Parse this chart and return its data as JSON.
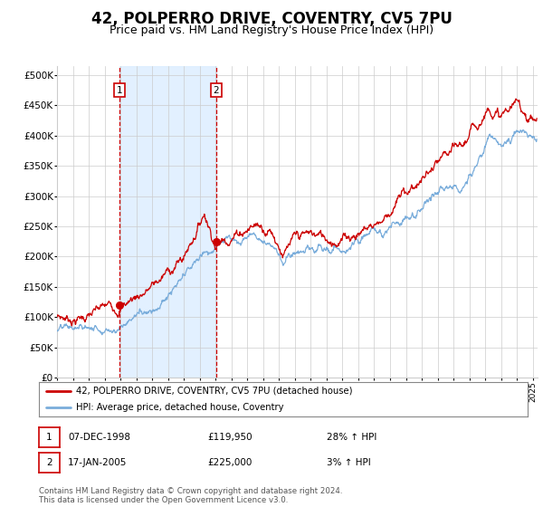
{
  "title": "42, POLPERRO DRIVE, COVENTRY, CV5 7PU",
  "subtitle": "Price paid vs. HM Land Registry's House Price Index (HPI)",
  "ytick_values": [
    0,
    50000,
    100000,
    150000,
    200000,
    250000,
    300000,
    350000,
    400000,
    450000,
    500000
  ],
  "ylim": [
    0,
    515000
  ],
  "xlim_start": 1995.0,
  "xlim_end": 2025.3,
  "xtick_years": [
    1995,
    1996,
    1997,
    1998,
    1999,
    2000,
    2001,
    2002,
    2003,
    2004,
    2005,
    2006,
    2007,
    2008,
    2009,
    2010,
    2011,
    2012,
    2013,
    2014,
    2015,
    2016,
    2017,
    2018,
    2019,
    2020,
    2021,
    2022,
    2023,
    2024,
    2025
  ],
  "sale1_x": 1998.93,
  "sale1_y": 119950,
  "sale2_x": 2005.04,
  "sale2_y": 225000,
  "sale1_label": "07-DEC-1998",
  "sale1_price": "£119,950",
  "sale1_hpi": "28% ↑ HPI",
  "sale2_label": "17-JAN-2005",
  "sale2_price": "£225,000",
  "sale2_hpi": "3% ↑ HPI",
  "legend_line1": "42, POLPERRO DRIVE, COVENTRY, CV5 7PU (detached house)",
  "legend_line2": "HPI: Average price, detached house, Coventry",
  "footer": "Contains HM Land Registry data © Crown copyright and database right 2024.\nThis data is licensed under the Open Government Licence v3.0.",
  "line_color_red": "#cc0000",
  "line_color_blue": "#7aaddb",
  "shaded_color": "#ddeeff",
  "vline_color": "#cc0000",
  "background_color": "#ffffff",
  "grid_color": "#cccccc",
  "title_fontsize": 12,
  "subtitle_fontsize": 9
}
